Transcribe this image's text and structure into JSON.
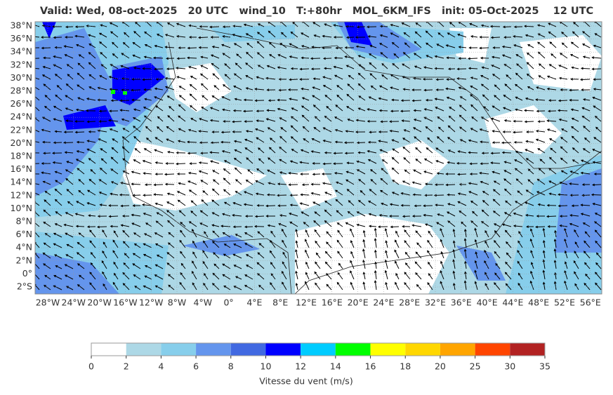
{
  "header": {
    "title": "Valid: Wed, 08-oct-2025   20 UTC   wind_10   T:+80hr   MOL_6KM_IFS   init: 05-Oct-2025    12 UTC"
  },
  "map": {
    "lat_labels": [
      "38°N",
      "36°N",
      "34°N",
      "32°N",
      "30°N",
      "28°N",
      "26°N",
      "24°N",
      "22°N",
      "20°N",
      "18°N",
      "16°N",
      "14°N",
      "12°N",
      "10°N",
      "8°N",
      "6°N",
      "4°N",
      "2°N",
      "0°",
      "2°S"
    ],
    "lon_labels": [
      "28°W",
      "24°W",
      "20°W",
      "16°W",
      "12°W",
      "8°W",
      "4°W",
      "0°",
      "4°E",
      "8°E",
      "12°E",
      "16°E",
      "20°E",
      "24°E",
      "28°E",
      "32°E",
      "36°E",
      "40°E",
      "44°E",
      "48°E",
      "52°E",
      "56°E"
    ]
  },
  "colorbar": {
    "ticks": [
      "0",
      "2",
      "4",
      "6",
      "8",
      "10",
      "12",
      "14",
      "16",
      "18",
      "20",
      "25",
      "30",
      "35"
    ],
    "colors": [
      "#ffffff",
      "#add8e6",
      "#87ceeb",
      "#6495ed",
      "#4169e1",
      "#0000ff",
      "#00ccff",
      "#00ff00",
      "#ffff00",
      "#ffd700",
      "#ffa500",
      "#ff4500",
      "#b22222"
    ],
    "label": "Vitesse du vent (m/s)"
  }
}
